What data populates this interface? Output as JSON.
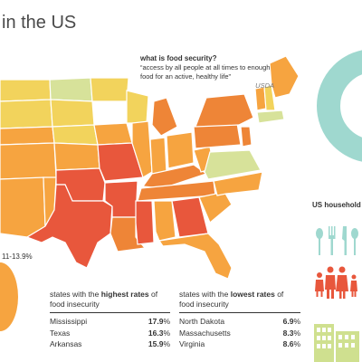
{
  "title": "in the US",
  "definition": {
    "question": "what is food security?",
    "quote": "“access by all people at all times to enough food for an active, healthy life”",
    "source": "USDA"
  },
  "legend_range": "11-13.9%",
  "highest": {
    "title_prefix": "states with the ",
    "title_emph": "highest rates",
    "title_suffix": " of food insecurity",
    "rows": [
      {
        "state": "Mississippi",
        "value": "17.9"
      },
      {
        "state": "Texas",
        "value": "16.3"
      },
      {
        "state": "Arkansas",
        "value": "15.9"
      }
    ]
  },
  "lowest": {
    "title_prefix": "states with the ",
    "title_emph": "lowest rates",
    "title_suffix": " of food insecurity",
    "rows": [
      {
        "state": "North Dakota",
        "value": "6.9"
      },
      {
        "state": "Massachusetts",
        "value": "8.3"
      },
      {
        "state": "Virginia",
        "value": "8.6"
      }
    ]
  },
  "percent_sign": "%",
  "households_title": "US household",
  "colors": {
    "lowest": "#d7e29a",
    "low": "#f2d35c",
    "mid": "#f6a440",
    "high": "#ee8537",
    "highest": "#e8573c",
    "ring": "#9fd8cf",
    "icons": "#9fd8cf",
    "people": "#e8573c",
    "buildings": "#cfe08f",
    "orange_circle": "#f6a440"
  }
}
